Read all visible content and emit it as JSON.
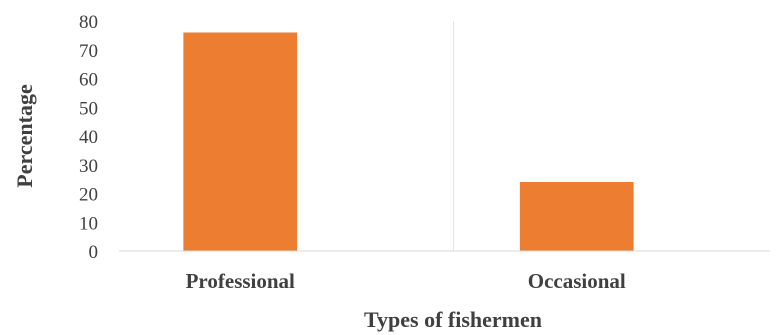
{
  "chart_data": {
    "type": "bar",
    "title": "",
    "xlabel": "Types of fishermen",
    "ylabel": "Percentage",
    "categories": [
      "Professional",
      "Occasional"
    ],
    "series": [
      {
        "values": [
          76,
          24
        ],
        "color": "#ED7D31"
      }
    ],
    "ylim": [
      0,
      80
    ],
    "yticks": [
      0,
      10,
      20,
      30,
      40,
      50,
      60,
      70,
      80
    ],
    "grid": "vertical category separators",
    "legend": "none"
  }
}
